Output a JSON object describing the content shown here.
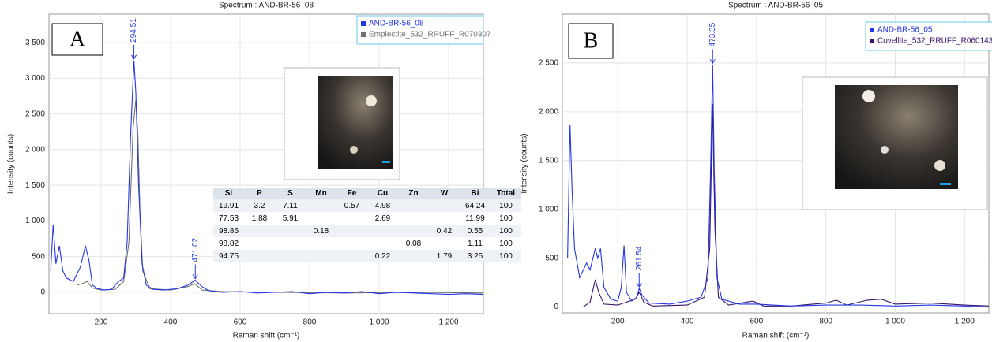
{
  "chart_data": [
    {
      "type": "line",
      "panel_label": "A",
      "title": "Spectrum : AND-BR-56_08",
      "x_label": "Raman shift (cm⁻¹)",
      "y_label": "Intensity (counts)",
      "xlim": [
        50,
        1300
      ],
      "ylim": [
        -300,
        3900
      ],
      "xticks": [
        200,
        400,
        600,
        800,
        {
          "value": 1000,
          "label": "1 000"
        },
        {
          "value": 1200,
          "label": "1 200"
        }
      ],
      "yticks": [
        0,
        500,
        {
          "value": 1000,
          "label": "1 000"
        },
        {
          "value": 1500,
          "label": "1 500"
        },
        {
          "value": 2000,
          "label": "2 000"
        },
        {
          "value": 2500,
          "label": "2 500"
        },
        {
          "value": 3000,
          "label": "3 000"
        },
        {
          "value": 3500,
          "label": "3 500"
        }
      ],
      "grid": true,
      "legend": "upper right",
      "peak_labels": [
        294.51,
        471.02
      ],
      "series": [
        {
          "name": "AND-BR-56_08",
          "color": "#2436e6",
          "x": [
            55,
            62,
            70,
            80,
            90,
            100,
            120,
            140,
            155,
            165,
            175,
            190,
            210,
            230,
            250,
            265,
            275,
            285,
            294.51,
            300,
            308,
            318,
            330,
            350,
            380,
            420,
            450,
            471.02,
            490,
            510,
            550,
            600,
            650,
            700,
            750,
            800,
            850,
            900,
            950,
            1000,
            1050,
            1100,
            1150,
            1200,
            1250,
            1300
          ],
          "values": [
            300,
            950,
            400,
            650,
            300,
            200,
            150,
            350,
            650,
            450,
            100,
            50,
            30,
            40,
            150,
            200,
            700,
            2200,
            3250,
            2800,
            1500,
            400,
            100,
            40,
            30,
            50,
            100,
            170,
            80,
            20,
            0,
            10,
            -10,
            0,
            10,
            -20,
            0,
            -10,
            10,
            -20,
            0,
            -10,
            -20,
            -30,
            -20,
            -30
          ]
        },
        {
          "name": "Emplectite_532_RRUFF_R070307",
          "color": "#707070",
          "x": [
            130,
            145,
            160,
            175,
            200,
            240,
            265,
            280,
            292,
            300,
            306,
            312,
            320,
            340,
            400,
            450,
            470,
            490,
            550,
            700,
            900,
            1100,
            1300
          ],
          "values": [
            100,
            120,
            150,
            60,
            30,
            40,
            150,
            700,
            2300,
            2700,
            2200,
            1100,
            300,
            50,
            30,
            80,
            120,
            30,
            10,
            0,
            -10,
            0,
            -10
          ]
        }
      ]
    },
    {
      "type": "line",
      "panel_label": "B",
      "title": "Spectrum : AND-BR-56_05",
      "x_label": "Raman shift (cm⁻¹)",
      "y_label": "Intensity (counts)",
      "xlim": [
        40,
        1270
      ],
      "ylim": [
        -60,
        3000
      ],
      "xticks": [
        200,
        400,
        600,
        800,
        {
          "value": 1000,
          "label": "1 000"
        },
        {
          "value": 1200,
          "label": "1 200"
        }
      ],
      "yticks": [
        0,
        500,
        {
          "value": 1000,
          "label": "1 000"
        },
        {
          "value": 1500,
          "label": "1 500"
        },
        {
          "value": 2000,
          "label": "2 000"
        },
        {
          "value": 2500,
          "label": "2 500"
        }
      ],
      "grid": true,
      "legend": "upper right",
      "peak_labels": [
        473.35,
        261.54
      ],
      "series": [
        {
          "name": "AND-BR-56_05",
          "color": "#2436e6",
          "x": [
            55,
            62,
            68,
            75,
            90,
            110,
            120,
            135,
            142,
            150,
            160,
            180,
            200,
            210,
            218,
            225,
            240,
            255,
            261.54,
            270,
            290,
            350,
            400,
            440,
            460,
            468,
            473.35,
            478,
            486,
            500,
            550,
            600,
            700,
            800,
            900,
            1000,
            1100,
            1200,
            1270
          ],
          "values": [
            500,
            1870,
            1200,
            600,
            300,
            450,
            380,
            600,
            500,
            600,
            200,
            80,
            60,
            200,
            630,
            150,
            60,
            100,
            190,
            120,
            40,
            30,
            60,
            100,
            300,
            1500,
            2480,
            1400,
            300,
            80,
            30,
            30,
            10,
            20,
            20,
            10,
            20,
            10,
            0
          ]
        },
        {
          "name": "Covellite_532_RRUFF_R060143",
          "color": "#3a1470",
          "x": [
            100,
            120,
            135,
            145,
            160,
            200,
            250,
            262,
            275,
            300,
            400,
            450,
            465,
            473,
            480,
            490,
            520,
            590,
            620,
            700,
            800,
            830,
            860,
            920,
            960,
            1000,
            1100,
            1200,
            1270
          ],
          "values": [
            0,
            50,
            280,
            150,
            30,
            20,
            80,
            150,
            50,
            10,
            20,
            100,
            600,
            2080,
            800,
            100,
            20,
            60,
            10,
            10,
            40,
            70,
            20,
            70,
            80,
            30,
            40,
            20,
            10
          ]
        }
      ]
    }
  ],
  "table": {
    "headers": [
      "Si",
      "P",
      "S",
      "Mn",
      "Fe",
      "Cu",
      "Zn",
      "W",
      "Bi",
      "Total"
    ],
    "rows": [
      [
        19.91,
        3.2,
        7.11,
        null,
        0.57,
        4.98,
        null,
        null,
        64.24,
        100
      ],
      [
        77.53,
        1.88,
        5.91,
        null,
        null,
        2.69,
        null,
        null,
        11.99,
        100
      ],
      [
        98.86,
        null,
        null,
        0.18,
        null,
        null,
        null,
        0.42,
        0.55,
        100
      ],
      [
        98.82,
        null,
        null,
        null,
        null,
        null,
        0.08,
        null,
        1.11,
        100
      ],
      [
        94.75,
        null,
        null,
        null,
        null,
        0.22,
        null,
        1.79,
        3.25,
        100
      ]
    ]
  }
}
